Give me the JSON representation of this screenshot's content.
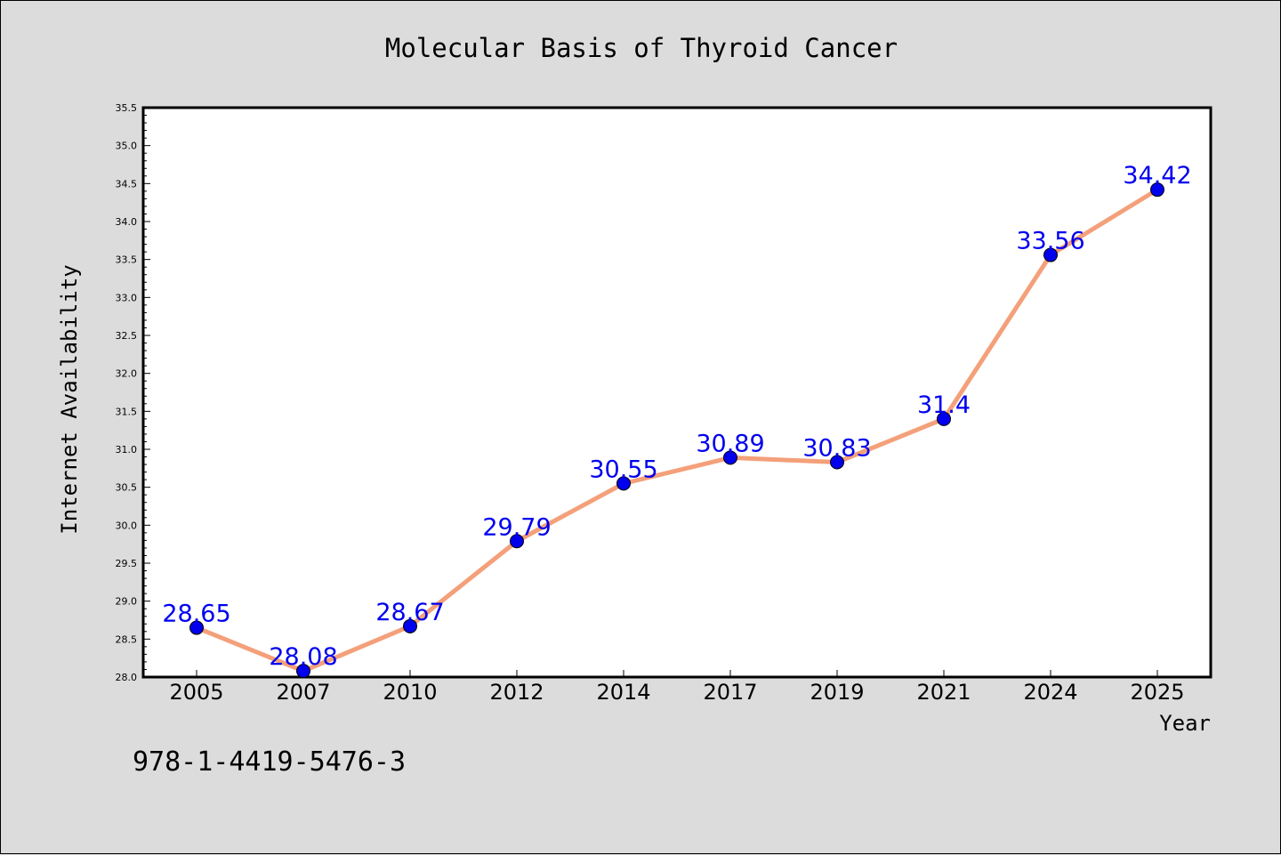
{
  "chart_data": {
    "type": "line",
    "title": "Molecular Basis of Thyroid Cancer",
    "xlabel": "Year",
    "ylabel": "Internet Availability",
    "categories": [
      "2005",
      "2007",
      "2010",
      "2012",
      "2014",
      "2017",
      "2019",
      "2021",
      "2024",
      "2025"
    ],
    "series": [
      {
        "values": [
          28.65,
          28.08,
          28.67,
          29.79,
          30.55,
          30.89,
          30.83,
          31.4,
          33.56,
          34.42
        ],
        "data_labels": [
          "28.65",
          "28.08",
          "28.67",
          "29.79",
          "30.55",
          "30.89",
          "30.83",
          "31.4",
          "33.56",
          "34.42"
        ],
        "line_color": "#f4a07a",
        "marker_color": "#0000ee",
        "label_color": "#0000ee"
      }
    ],
    "ylim": [
      28.0,
      35.5
    ],
    "yticks": [
      "28.0",
      "28.5",
      "29.0",
      "29.5",
      "30.0",
      "30.5",
      "31.0",
      "31.5",
      "32.0",
      "32.5",
      "33.0",
      "33.5",
      "34.0",
      "34.5",
      "35.0",
      "35.5"
    ],
    "grid": false,
    "legend": "none"
  },
  "footer": {
    "isbn": "978-1-4419-5476-3"
  },
  "colors": {
    "background": "#dcdcdc",
    "plot_background": "#ffffff",
    "axis": "#000000"
  }
}
